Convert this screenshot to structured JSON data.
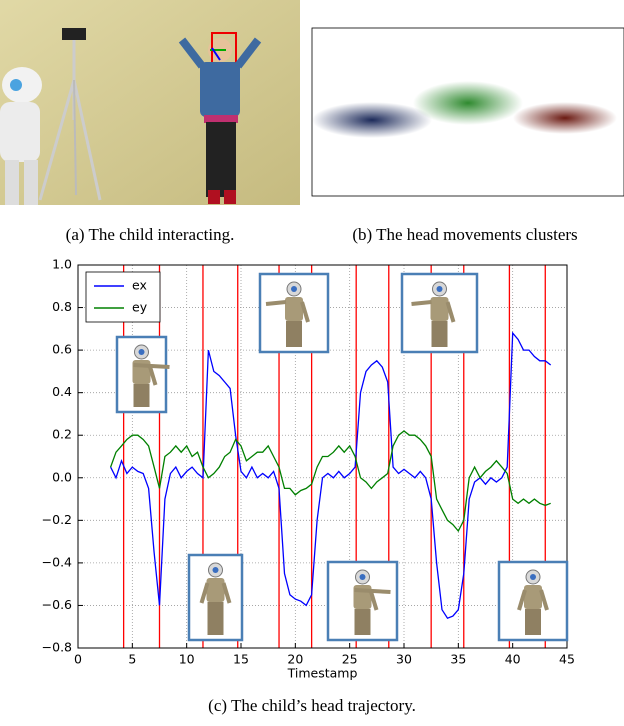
{
  "captions": {
    "a": "(a) The child interacting.",
    "b": "(b) The head movements clusters",
    "c": "(c) The child’s head trajectory."
  },
  "chart_data": {
    "type": "line",
    "xlabel": "Timestamp",
    "xlim": [
      0,
      45
    ],
    "ylim": [
      -0.8,
      1.0
    ],
    "xticks": [
      0,
      5,
      10,
      15,
      20,
      25,
      30,
      35,
      40,
      45
    ],
    "yticks": [
      {
        "value": -0.8,
        "label": "−0.8"
      },
      {
        "value": -0.6,
        "label": "−0.6"
      },
      {
        "value": -0.4,
        "label": "−0.4"
      },
      {
        "value": -0.2,
        "label": "−0.2"
      },
      {
        "value": 0,
        "label": "0.0"
      },
      {
        "value": 0.2,
        "label": "0.2"
      },
      {
        "value": 0.4,
        "label": "0.4"
      },
      {
        "value": 0.6,
        "label": "0.6"
      },
      {
        "value": 0.8,
        "label": "0.8"
      },
      {
        "value": 1.0,
        "label": "1.0"
      }
    ],
    "grid": true,
    "legend": "upper left",
    "x": [
      3.0,
      3.5,
      4.0,
      4.5,
      5.0,
      5.5,
      6.0,
      6.5,
      7.0,
      7.5,
      8.0,
      8.5,
      9.0,
      9.5,
      10.0,
      10.5,
      11.0,
      11.5,
      12.0,
      12.5,
      13.0,
      13.5,
      14.0,
      14.5,
      15.0,
      15.5,
      16.0,
      16.5,
      17.0,
      17.5,
      18.0,
      18.5,
      19.0,
      19.5,
      20.0,
      20.5,
      21.0,
      21.5,
      22.0,
      22.5,
      23.0,
      23.5,
      24.0,
      24.5,
      25.0,
      25.5,
      26.0,
      26.5,
      27.0,
      27.5,
      28.0,
      28.5,
      29.0,
      29.5,
      30.0,
      30.5,
      31.0,
      31.5,
      32.0,
      32.5,
      33.0,
      33.5,
      34.0,
      34.5,
      35.0,
      35.5,
      36.0,
      36.5,
      37.0,
      37.5,
      38.0,
      38.5,
      39.0,
      39.5,
      40.0,
      40.5,
      41.0,
      41.5,
      42.0,
      42.5,
      43.0,
      43.5
    ],
    "series": [
      {
        "name": "ex",
        "color": "#0000ff",
        "values": [
          0.05,
          0.0,
          0.08,
          0.02,
          0.05,
          0.03,
          0.02,
          -0.05,
          -0.35,
          -0.6,
          -0.1,
          0.02,
          0.05,
          0.0,
          0.03,
          0.05,
          0.02,
          0.0,
          0.6,
          0.5,
          0.48,
          0.45,
          0.42,
          0.2,
          0.03,
          0.0,
          0.05,
          0.0,
          0.02,
          0.0,
          0.03,
          -0.05,
          -0.45,
          -0.55,
          -0.57,
          -0.58,
          -0.6,
          -0.55,
          -0.2,
          0.0,
          0.02,
          0.0,
          0.03,
          0.0,
          0.02,
          0.05,
          0.4,
          0.5,
          0.53,
          0.55,
          0.52,
          0.45,
          0.05,
          0.02,
          0.04,
          0.02,
          0.0,
          0.03,
          0.0,
          -0.1,
          -0.4,
          -0.62,
          -0.66,
          -0.65,
          -0.62,
          -0.45,
          -0.1,
          -0.02,
          0.0,
          -0.03,
          0.0,
          -0.02,
          0.0,
          0.05,
          0.68,
          0.65,
          0.6,
          0.6,
          0.57,
          0.55,
          0.55,
          0.53
        ]
      },
      {
        "name": "ey",
        "color": "#008000",
        "values": [
          0.05,
          0.12,
          0.15,
          0.18,
          0.2,
          0.2,
          0.18,
          0.15,
          0.05,
          -0.05,
          0.1,
          0.12,
          0.15,
          0.12,
          0.15,
          0.1,
          0.12,
          0.05,
          0.0,
          0.02,
          0.05,
          0.1,
          0.12,
          0.18,
          0.15,
          0.08,
          0.1,
          0.12,
          0.12,
          0.15,
          0.1,
          0.05,
          -0.05,
          -0.05,
          -0.08,
          -0.06,
          -0.05,
          -0.03,
          0.05,
          0.1,
          0.1,
          0.12,
          0.15,
          0.12,
          0.15,
          0.1,
          0.0,
          -0.02,
          -0.05,
          -0.02,
          0.0,
          0.02,
          0.15,
          0.2,
          0.22,
          0.2,
          0.2,
          0.18,
          0.15,
          0.1,
          -0.1,
          -0.15,
          -0.2,
          -0.22,
          -0.25,
          -0.2,
          0.0,
          0.05,
          0.0,
          0.03,
          0.05,
          0.08,
          0.05,
          0.02,
          -0.1,
          -0.12,
          -0.1,
          -0.12,
          -0.1,
          -0.12,
          -0.13,
          -0.12
        ]
      }
    ],
    "vlines": {
      "color": "#ff0000",
      "x": [
        4.2,
        7.5,
        11.5,
        14.7,
        18.5,
        21.5,
        25.6,
        28.6,
        32.5,
        35.5,
        39.7,
        43.0
      ]
    }
  }
}
